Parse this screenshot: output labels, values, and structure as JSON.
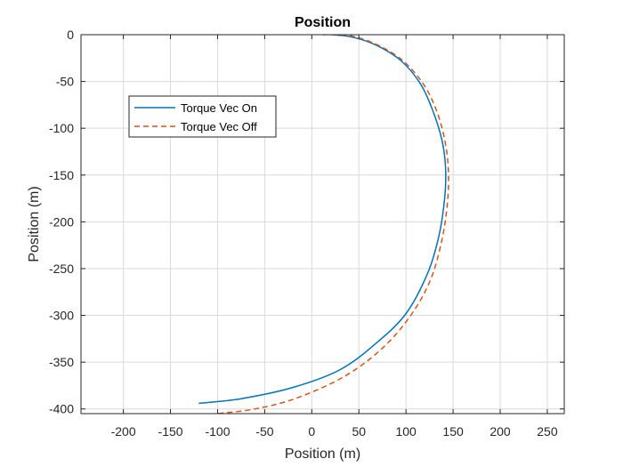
{
  "chart_data": {
    "type": "line",
    "title": "Position",
    "xlabel": "Position (m)",
    "ylabel": "Position (m)",
    "xlim": [
      -245,
      268
    ],
    "ylim": [
      -405,
      0
    ],
    "xticks": [
      -200,
      -150,
      -100,
      -50,
      0,
      50,
      100,
      150,
      200,
      250
    ],
    "yticks": [
      0,
      -50,
      -100,
      -150,
      -200,
      -250,
      -300,
      -350,
      -400
    ],
    "grid": true,
    "legend_position": "upper-left",
    "colors": {
      "on": "#0072BD",
      "off": "#D95319"
    },
    "series": [
      {
        "name": "Torque Vec On",
        "style": "solid",
        "points": [
          [
            12,
            0
          ],
          [
            22,
            0
          ],
          [
            45,
            -3
          ],
          [
            70,
            -12
          ],
          [
            95,
            -28
          ],
          [
            115,
            -52
          ],
          [
            128,
            -80
          ],
          [
            138,
            -112
          ],
          [
            142,
            -142
          ],
          [
            141,
            -175
          ],
          [
            135,
            -215
          ],
          [
            123,
            -255
          ],
          [
            100,
            -298
          ],
          [
            68,
            -330
          ],
          [
            30,
            -358
          ],
          [
            -20,
            -377
          ],
          [
            -75,
            -389
          ],
          [
            -120,
            -394
          ]
        ]
      },
      {
        "name": "Torque Vec Off",
        "style": "dashed",
        "points": [
          [
            12,
            0
          ],
          [
            22,
            0
          ],
          [
            45,
            -2
          ],
          [
            72,
            -12
          ],
          [
            97,
            -28
          ],
          [
            118,
            -52
          ],
          [
            132,
            -80
          ],
          [
            141,
            -112
          ],
          [
            145,
            -145
          ],
          [
            144,
            -180
          ],
          [
            138,
            -220
          ],
          [
            126,
            -262
          ],
          [
            105,
            -300
          ],
          [
            75,
            -335
          ],
          [
            35,
            -365
          ],
          [
            -15,
            -388
          ],
          [
            -60,
            -400
          ],
          [
            -100,
            -405
          ]
        ]
      }
    ]
  }
}
